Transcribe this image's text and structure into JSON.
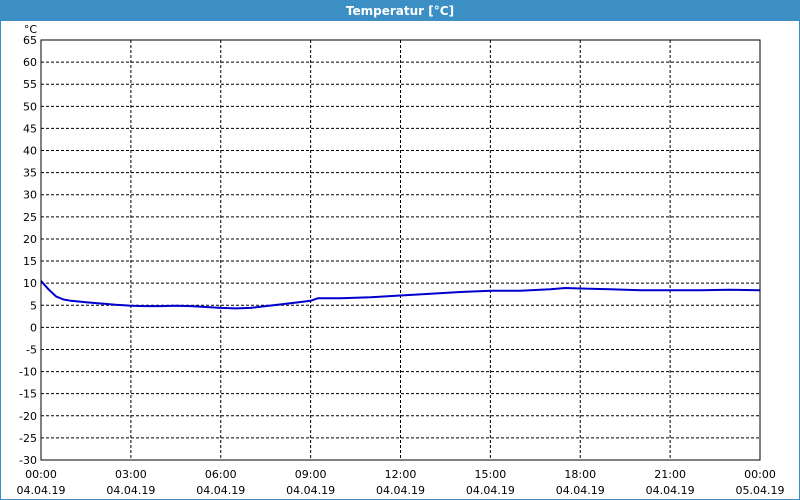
{
  "window": {
    "title": "Temperatur [°C]"
  },
  "chart_data": {
    "type": "line",
    "title": "Temperatur [°C]",
    "ylabel": "°C",
    "xlabel": "",
    "ylim": [
      -30,
      65
    ],
    "yticks": [
      65,
      60,
      55,
      50,
      45,
      40,
      35,
      30,
      25,
      20,
      15,
      10,
      5,
      0,
      -5,
      -10,
      -15,
      -20,
      -25,
      -30
    ],
    "xlim": [
      "2019-04-04 00:00",
      "2019-04-05 00:00"
    ],
    "xticks": [
      {
        "time": "00:00",
        "date": "04.04.19"
      },
      {
        "time": "03:00",
        "date": "04.04.19"
      },
      {
        "time": "06:00",
        "date": "04.04.19"
      },
      {
        "time": "09:00",
        "date": "04.04.19"
      },
      {
        "time": "12:00",
        "date": "04.04.19"
      },
      {
        "time": "15:00",
        "date": "04.04.19"
      },
      {
        "time": "18:00",
        "date": "04.04.19"
      },
      {
        "time": "21:00",
        "date": "04.04.19"
      },
      {
        "time": "00:00",
        "date": "05.04.19"
      }
    ],
    "grid": true,
    "series_color": "#0000cc",
    "series": [
      {
        "x": [
          "2019-04-04 00:00",
          "2019-04-04 00:15",
          "2019-04-04 00:30",
          "2019-04-04 00:45",
          "2019-04-04 01:00",
          "2019-04-04 01:30",
          "2019-04-04 02:00",
          "2019-04-04 02:30",
          "2019-04-04 03:00",
          "2019-04-04 03:30",
          "2019-04-04 04:00",
          "2019-04-04 04:30",
          "2019-04-04 05:00",
          "2019-04-04 05:30",
          "2019-04-04 06:00",
          "2019-04-04 06:30",
          "2019-04-04 07:00",
          "2019-04-04 07:30",
          "2019-04-04 08:00",
          "2019-04-04 08:30",
          "2019-04-04 09:00",
          "2019-04-04 09:15",
          "2019-04-04 10:00",
          "2019-04-04 11:00",
          "2019-04-04 12:00",
          "2019-04-04 13:00",
          "2019-04-04 14:00",
          "2019-04-04 15:00",
          "2019-04-04 16:00",
          "2019-04-04 17:00",
          "2019-04-04 17:30",
          "2019-04-04 18:00",
          "2019-04-04 19:00",
          "2019-04-04 20:00",
          "2019-04-04 21:00",
          "2019-04-04 22:00",
          "2019-04-04 23:00",
          "2019-04-05 00:00"
        ],
        "y": [
          10.5,
          8.6,
          7.0,
          6.3,
          6.0,
          5.7,
          5.4,
          5.1,
          4.9,
          4.8,
          4.8,
          4.9,
          4.8,
          4.6,
          4.4,
          4.3,
          4.4,
          4.8,
          5.2,
          5.6,
          6.0,
          6.6,
          6.6,
          6.8,
          7.2,
          7.6,
          8.0,
          8.3,
          8.3,
          8.6,
          8.9,
          8.8,
          8.6,
          8.4,
          8.4,
          8.4,
          8.5,
          8.4
        ]
      }
    ]
  }
}
